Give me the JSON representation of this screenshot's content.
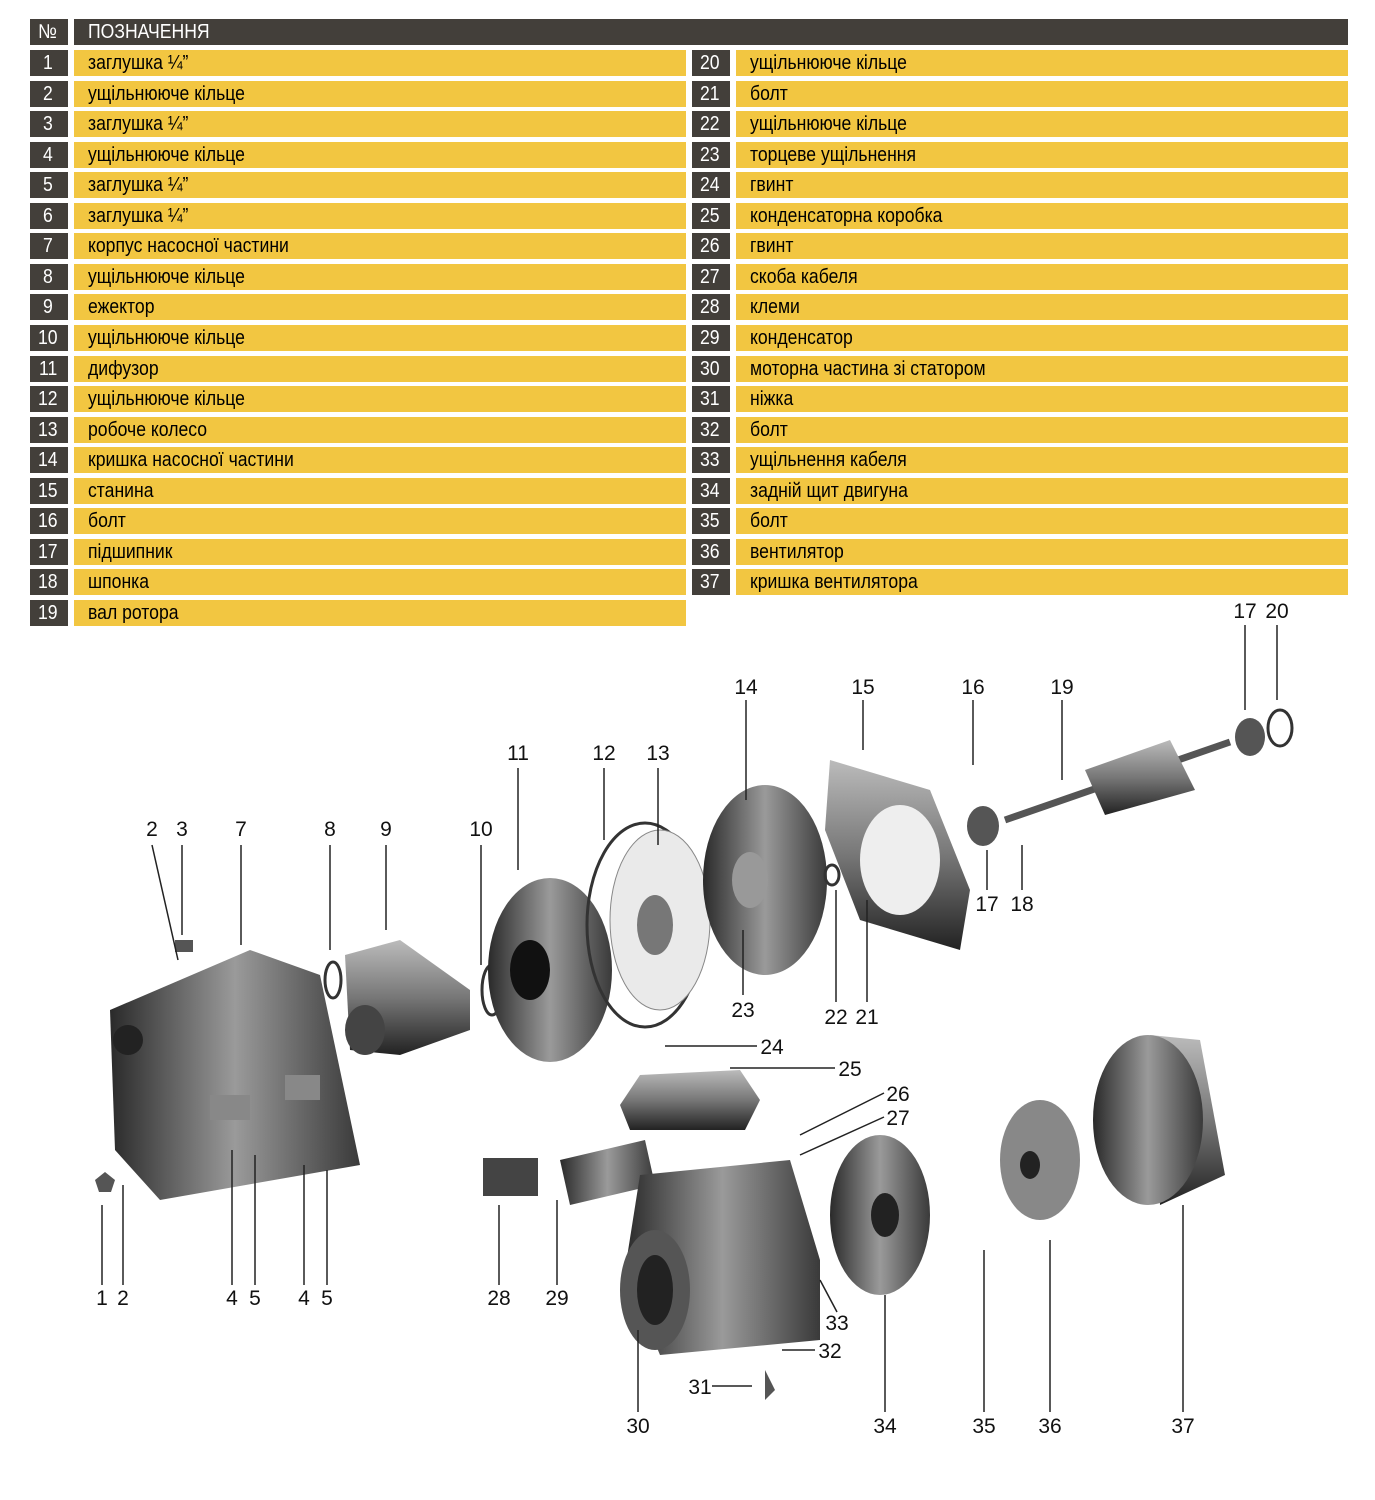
{
  "header": {
    "no": "№",
    "title": "ПОЗНАЧЕННЯ"
  },
  "parts": [
    {
      "n": "1",
      "name": "заглушка ¼”"
    },
    {
      "n": "2",
      "name": "ущільнююче кільце"
    },
    {
      "n": "3",
      "name": "заглушка ¼”"
    },
    {
      "n": "4",
      "name": "ущільнююче кільце"
    },
    {
      "n": "5",
      "name": "заглушка ¼”"
    },
    {
      "n": "6",
      "name": "заглушка ¼”"
    },
    {
      "n": "7",
      "name": "корпус насосної частини"
    },
    {
      "n": "8",
      "name": "ущільнююче кільце"
    },
    {
      "n": "9",
      "name": "ежектор"
    },
    {
      "n": "10",
      "name": "ущільнююче кільце"
    },
    {
      "n": "11",
      "name": "дифузор"
    },
    {
      "n": "12",
      "name": "ущільнююче кільце"
    },
    {
      "n": "13",
      "name": "робоче колесо"
    },
    {
      "n": "14",
      "name": "кришка насосної частини"
    },
    {
      "n": "15",
      "name": "станина"
    },
    {
      "n": "16",
      "name": "болт"
    },
    {
      "n": "17",
      "name": "підшипник"
    },
    {
      "n": "18",
      "name": "шпонка"
    },
    {
      "n": "19",
      "name": "вал ротора"
    },
    {
      "n": "20",
      "name": "ущільнююче кільце"
    },
    {
      "n": "21",
      "name": "болт"
    },
    {
      "n": "22",
      "name": "ущільнююче кільце"
    },
    {
      "n": "23",
      "name": "торцеве ущільнення"
    },
    {
      "n": "24",
      "name": "гвинт"
    },
    {
      "n": "25",
      "name": "конденсаторна коробка"
    },
    {
      "n": "26",
      "name": "гвинт"
    },
    {
      "n": "27",
      "name": "скоба кабеля"
    },
    {
      "n": "28",
      "name": "клеми"
    },
    {
      "n": "29",
      "name": "конденсатор"
    },
    {
      "n": "30",
      "name": "моторна частина зі статором"
    },
    {
      "n": "31",
      "name": "ніжка"
    },
    {
      "n": "32",
      "name": "болт"
    },
    {
      "n": "33",
      "name": "ущільнення кабеля"
    },
    {
      "n": "34",
      "name": "задній щит двигуна"
    },
    {
      "n": "35",
      "name": "болт"
    },
    {
      "n": "36",
      "name": "вентилятор"
    },
    {
      "n": "37",
      "name": "кришка вентилятора"
    }
  ],
  "callouts": [
    "17",
    "20",
    "14",
    "15",
    "16",
    "19",
    "11",
    "12",
    "13",
    "2",
    "3",
    "7",
    "8",
    "9",
    "10",
    "17",
    "18",
    "23",
    "22",
    "21",
    "24",
    "25",
    "26",
    "27",
    "1",
    "2",
    "4",
    "5",
    "4",
    "5",
    "28",
    "29",
    "33",
    "32",
    "31",
    "30",
    "34",
    "35",
    "36",
    "37"
  ],
  "colors": {
    "header": "#433f3a",
    "row": "#f2c641",
    "part": "#6b6b6b"
  }
}
